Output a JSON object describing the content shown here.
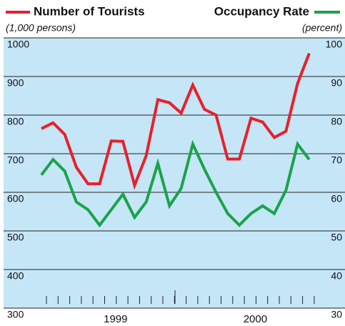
{
  "chart_data": {
    "type": "line",
    "legend": "top",
    "ylabel": "(1,000 persons)",
    "y2label": "(percent)",
    "categories": [
      null,
      null,
      null,
      null,
      null,
      null,
      "1999",
      null,
      null,
      null,
      null,
      null,
      null,
      null,
      null,
      null,
      null,
      null,
      "2000",
      null,
      null,
      null,
      null,
      null
    ],
    "series": [
      {
        "name": "Number of Tourists",
        "color": "#e8202a",
        "values": [
          765,
          780,
          750,
          665,
          622,
          622,
          733,
          732,
          618,
          695,
          840,
          832,
          805,
          878,
          815,
          800,
          686,
          686,
          792,
          782,
          742,
          758,
          882,
          960
        ]
      },
      {
        "name": "Occupancy Rate",
        "color": "#1aa34a",
        "axis": "y2",
        "values": [
          64.5,
          68.5,
          65.5,
          57.5,
          55.5,
          51.5,
          55.5,
          59.5,
          53.5,
          57.5,
          67.5,
          56.5,
          61,
          72.5,
          66,
          60,
          54.5,
          51.5,
          54.5,
          56.5,
          54.5,
          60.5,
          72.5,
          68.5
        ]
      }
    ],
    "ylim": [
      300,
      1000
    ],
    "yticks": [
      300,
      400,
      500,
      600,
      700,
      800,
      900,
      1000
    ],
    "y2lim": [
      30,
      100
    ],
    "y2ticks": [
      30,
      40,
      50,
      60,
      70,
      80,
      90,
      100
    ],
    "grid": true
  }
}
